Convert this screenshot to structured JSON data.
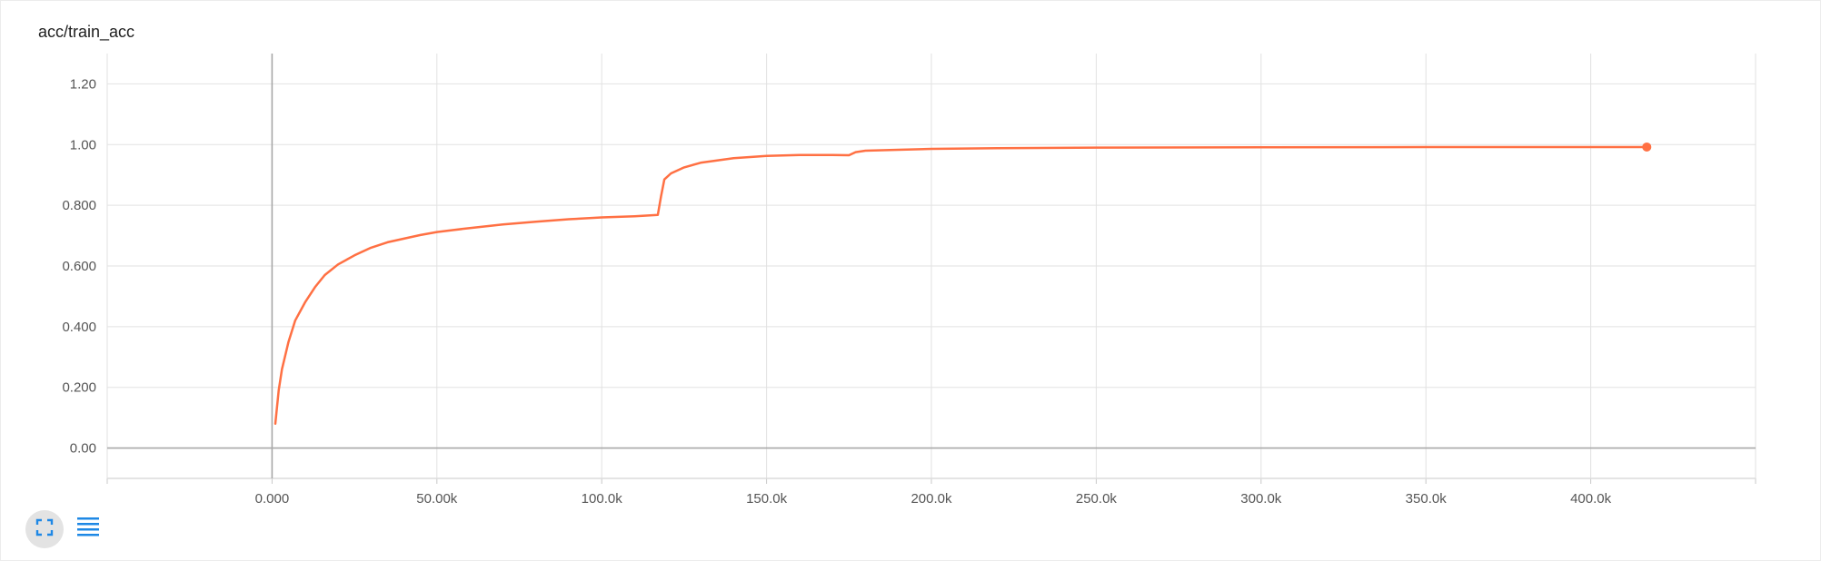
{
  "card": {
    "title": "acc/train_acc"
  },
  "colors": {
    "series": "#ff7043",
    "grid": "#e2e2e2",
    "zero_axis": "#a8a8a8",
    "icon": "#1e88e5"
  },
  "toolbar": {
    "expand_icon": "fullscreen-icon",
    "data_icon": "list-icon"
  },
  "chart_data": {
    "type": "line",
    "title": "acc/train_acc",
    "xlabel": "",
    "ylabel": "",
    "xlim": [
      -50000,
      450000
    ],
    "ylim": [
      -0.1,
      1.3
    ],
    "x_ticks": [
      0,
      50000,
      100000,
      150000,
      200000,
      250000,
      300000,
      350000,
      400000
    ],
    "x_tick_labels": [
      "0.000",
      "50.00k",
      "100.0k",
      "150.0k",
      "200.0k",
      "250.0k",
      "300.0k",
      "350.0k",
      "400.0k"
    ],
    "y_ticks": [
      0,
      0.2,
      0.4,
      0.6,
      0.8,
      1.0,
      1.2
    ],
    "y_tick_labels": [
      "0.00",
      "0.200",
      "0.400",
      "0.600",
      "0.800",
      "1.00",
      "1.20"
    ],
    "grid": true,
    "series": [
      {
        "points": [
          [
            1000,
            0.08
          ],
          [
            2000,
            0.19
          ],
          [
            3000,
            0.26
          ],
          [
            5000,
            0.35
          ],
          [
            7000,
            0.42
          ],
          [
            10000,
            0.48
          ],
          [
            13000,
            0.53
          ],
          [
            16000,
            0.57
          ],
          [
            20000,
            0.605
          ],
          [
            25000,
            0.635
          ],
          [
            30000,
            0.66
          ],
          [
            35000,
            0.678
          ],
          [
            40000,
            0.69
          ],
          [
            45000,
            0.702
          ],
          [
            50000,
            0.712
          ],
          [
            60000,
            0.725
          ],
          [
            70000,
            0.737
          ],
          [
            80000,
            0.746
          ],
          [
            90000,
            0.754
          ],
          [
            100000,
            0.76
          ],
          [
            110000,
            0.764
          ],
          [
            117000,
            0.768
          ],
          [
            118000,
            0.83
          ],
          [
            119000,
            0.885
          ],
          [
            121000,
            0.905
          ],
          [
            125000,
            0.925
          ],
          [
            130000,
            0.94
          ],
          [
            140000,
            0.955
          ],
          [
            150000,
            0.963
          ],
          [
            160000,
            0.966
          ],
          [
            170000,
            0.966
          ],
          [
            175000,
            0.965
          ],
          [
            177000,
            0.975
          ],
          [
            180000,
            0.98
          ],
          [
            190000,
            0.983
          ],
          [
            200000,
            0.986
          ],
          [
            220000,
            0.988
          ],
          [
            250000,
            0.99
          ],
          [
            300000,
            0.991
          ],
          [
            350000,
            0.992
          ],
          [
            400000,
            0.992
          ],
          [
            417000,
            0.992
          ]
        ]
      }
    ]
  }
}
